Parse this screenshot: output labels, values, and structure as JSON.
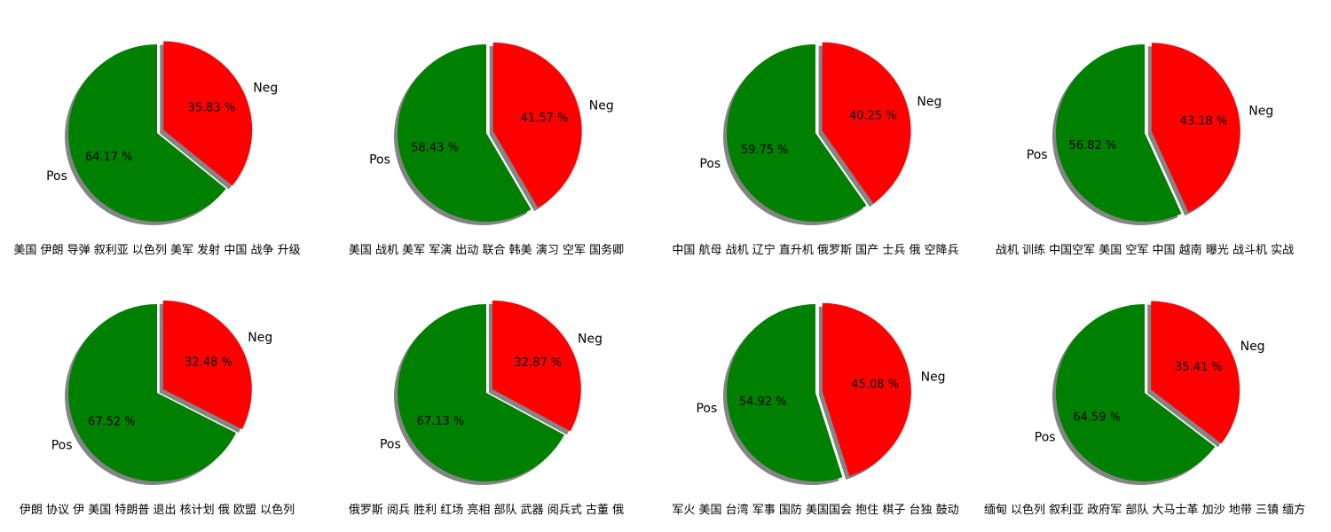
{
  "colors": {
    "pos": "#008000",
    "neg": "#ff0000",
    "shadow": "#777777"
  },
  "chart_data": [
    {
      "type": "pie",
      "title": "美国 伊朗 导弹 叙利亚 以色列 美军 发射 中国 战争 升级",
      "slices": [
        {
          "label": "Neg",
          "value": 35.83,
          "pct_text": "35.83 %"
        },
        {
          "label": "Pos",
          "value": 64.17,
          "pct_text": "64.17 %"
        }
      ]
    },
    {
      "type": "pie",
      "title": "美国 战机 美军 军演 出动 联合 韩美 演习 空军 国务卿",
      "slices": [
        {
          "label": "Neg",
          "value": 41.57,
          "pct_text": "41.57 %"
        },
        {
          "label": "Pos",
          "value": 58.43,
          "pct_text": "58.43 %"
        }
      ]
    },
    {
      "type": "pie",
      "title": "中国 航母 战机 辽宁 直升机 俄罗斯 国产 士兵 俄 空降兵",
      "slices": [
        {
          "label": "Neg",
          "value": 40.25,
          "pct_text": "40.25 %"
        },
        {
          "label": "Pos",
          "value": 59.75,
          "pct_text": "59.75 %"
        }
      ]
    },
    {
      "type": "pie",
      "title": "战机 训练 中国空军 美国 空军 中国 越南 曝光 战斗机 实战",
      "slices": [
        {
          "label": "Neg",
          "value": 43.18,
          "pct_text": "43.18 %"
        },
        {
          "label": "Pos",
          "value": 56.82,
          "pct_text": "56.82 %"
        }
      ]
    },
    {
      "type": "pie",
      "title": "伊朗 协议 伊 美国 特朗普 退出 核计划 俄 欧盟 以色列",
      "slices": [
        {
          "label": "Neg",
          "value": 32.48,
          "pct_text": "32.48 %"
        },
        {
          "label": "Pos",
          "value": 67.52,
          "pct_text": "67.52 %"
        }
      ]
    },
    {
      "type": "pie",
      "title": "俄罗斯 阅兵 胜利 红场 亮相 部队 武器 阅兵式 古董 俄",
      "slices": [
        {
          "label": "Neg",
          "value": 32.87,
          "pct_text": "32.87 %"
        },
        {
          "label": "Pos",
          "value": 67.13,
          "pct_text": "67.13 %"
        }
      ]
    },
    {
      "type": "pie",
      "title": "军火 美国 台湾 军事 国防 美国国会 抱住 棋子 台独 鼓动",
      "slices": [
        {
          "label": "Neg",
          "value": 45.08,
          "pct_text": "45.08 %"
        },
        {
          "label": "Pos",
          "value": 54.92,
          "pct_text": "54.92 %"
        }
      ]
    },
    {
      "type": "pie",
      "title": "缅甸 以色列 叙利亚 政府军 部队 大马士革 加沙 地带 三镇 缅方",
      "slices": [
        {
          "label": "Neg",
          "value": 35.41,
          "pct_text": "35.41 %"
        },
        {
          "label": "Pos",
          "value": 64.59,
          "pct_text": "64.59 %"
        }
      ]
    }
  ]
}
